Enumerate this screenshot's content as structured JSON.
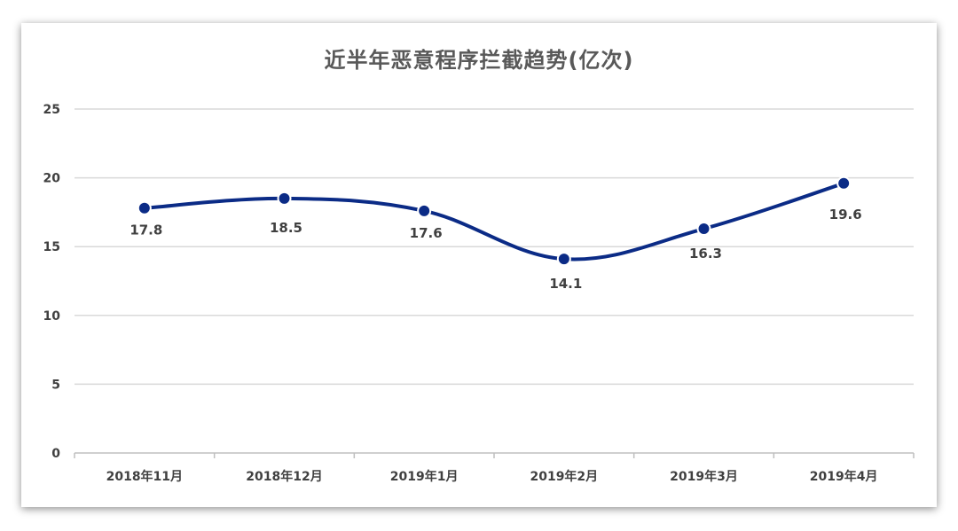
{
  "chart_data": {
    "type": "line",
    "title": "近半年恶意程序拦截趋势(亿次)",
    "categories": [
      "2018年11月",
      "2018年12月",
      "2019年1月",
      "2019年2月",
      "2019年3月",
      "2019年4月"
    ],
    "series": [
      {
        "values": [
          17.8,
          18.5,
          17.6,
          14.1,
          16.3,
          19.6
        ],
        "labels": [
          "17.8",
          "18.5",
          "17.6",
          "14.1",
          "16.3",
          "19.6"
        ]
      }
    ],
    "yticks": [
      "0",
      "5",
      "10",
      "15",
      "20",
      "25"
    ],
    "ylim": [
      0,
      25
    ],
    "grid": true,
    "legend": "none",
    "line_color": "#0b2b86",
    "marker_color": "#0b2b86",
    "marker_edge_color": "#ffffff",
    "gridline_color": "#d9d9d9",
    "smooth": true
  }
}
